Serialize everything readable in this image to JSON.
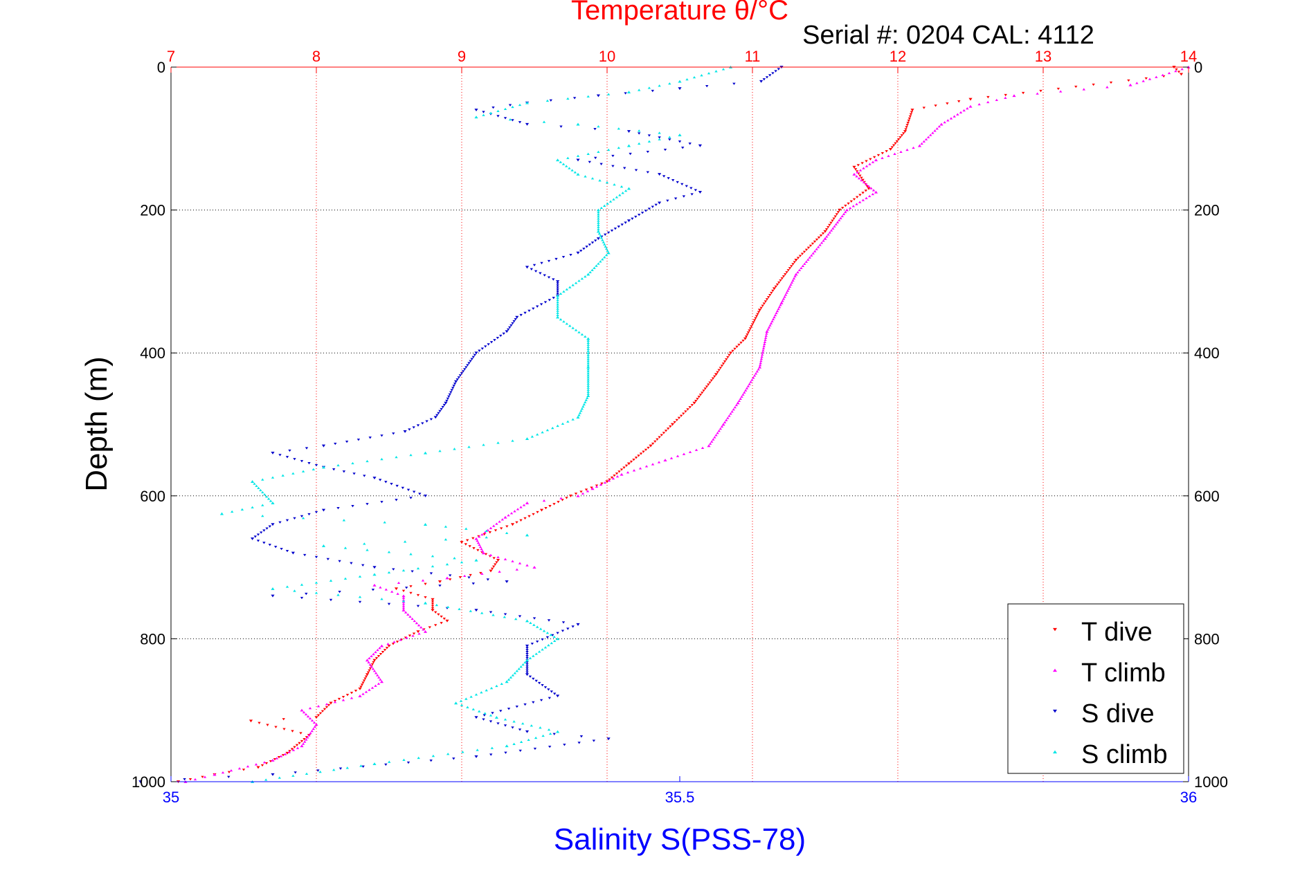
{
  "chart_data": {
    "type": "scatter",
    "title": "Temperature θ/°C",
    "subtitle": "Serial #: 0204  CAL: 4112",
    "xlabel": "Salinity S(PSS-78)",
    "ylabel": "Depth (m)",
    "x_bottom": {
      "label": "Salinity S(PSS-78)",
      "range": [
        35,
        36
      ],
      "ticks": [
        "35",
        "35.5",
        "36"
      ],
      "color": "#0000ff"
    },
    "x_top": {
      "label": "Temperature θ/°C",
      "range": [
        7,
        14
      ],
      "ticks": [
        "7",
        "8",
        "9",
        "10",
        "11",
        "12",
        "13",
        "14"
      ],
      "color": "#ff0000"
    },
    "y": {
      "range": [
        0,
        1000
      ],
      "reversed": true,
      "ticks": [
        "0",
        "200",
        "400",
        "600",
        "800",
        "1000"
      ]
    },
    "grid": true,
    "legend": {
      "position": "bottom-right",
      "entries": [
        "T dive",
        "T climb",
        "S dive",
        "S climb"
      ]
    },
    "series": [
      {
        "name": "T dive",
        "axis": "top",
        "color": "#ff0000",
        "marker": "triangle-down",
        "points": [
          [
            13.9,
            0
          ],
          [
            13.95,
            10
          ],
          [
            12.5,
            45
          ],
          [
            12.1,
            60
          ],
          [
            12.05,
            90
          ],
          [
            11.95,
            115
          ],
          [
            11.7,
            140
          ],
          [
            11.8,
            170
          ],
          [
            11.6,
            200
          ],
          [
            11.5,
            230
          ],
          [
            11.3,
            270
          ],
          [
            11.15,
            310
          ],
          [
            11.05,
            340
          ],
          [
            10.95,
            380
          ],
          [
            10.85,
            400
          ],
          [
            10.75,
            430
          ],
          [
            10.6,
            470
          ],
          [
            10.45,
            500
          ],
          [
            10.3,
            530
          ],
          [
            10.15,
            555
          ],
          [
            10.0,
            580
          ],
          [
            9.75,
            600
          ],
          [
            9.55,
            620
          ],
          [
            9.35,
            640
          ],
          [
            9.0,
            665
          ],
          [
            9.25,
            690
          ],
          [
            9.2,
            705
          ],
          [
            8.85,
            720
          ],
          [
            8.55,
            730
          ],
          [
            8.8,
            745
          ],
          [
            8.8,
            760
          ],
          [
            8.9,
            775
          ],
          [
            8.7,
            790
          ],
          [
            8.5,
            810
          ],
          [
            8.4,
            830
          ],
          [
            8.35,
            850
          ],
          [
            8.3,
            870
          ],
          [
            8.1,
            890
          ],
          [
            8.0,
            910
          ],
          [
            7.55,
            915
          ],
          [
            7.95,
            935
          ],
          [
            7.8,
            960
          ],
          [
            7.6,
            980
          ],
          [
            7.3,
            990
          ],
          [
            7.05,
            1000
          ]
        ]
      },
      {
        "name": "T climb",
        "axis": "top",
        "color": "#ff00ff",
        "marker": "triangle-up",
        "points": [
          [
            14.0,
            0
          ],
          [
            13.6,
            25
          ],
          [
            12.8,
            40
          ],
          [
            12.5,
            55
          ],
          [
            12.3,
            80
          ],
          [
            12.15,
            110
          ],
          [
            11.85,
            130
          ],
          [
            11.7,
            150
          ],
          [
            11.85,
            175
          ],
          [
            11.65,
            200
          ],
          [
            11.5,
            240
          ],
          [
            11.3,
            290
          ],
          [
            11.2,
            330
          ],
          [
            11.1,
            370
          ],
          [
            11.05,
            420
          ],
          [
            10.9,
            470
          ],
          [
            10.8,
            500
          ],
          [
            10.7,
            530
          ],
          [
            10.4,
            550
          ],
          [
            10.1,
            570
          ],
          [
            9.9,
            590
          ],
          [
            9.8,
            600
          ],
          [
            9.45,
            610
          ],
          [
            9.3,
            630
          ],
          [
            9.1,
            660
          ],
          [
            9.15,
            680
          ],
          [
            9.5,
            700
          ],
          [
            8.9,
            715
          ],
          [
            8.4,
            725
          ],
          [
            8.6,
            740
          ],
          [
            8.6,
            760
          ],
          [
            8.75,
            790
          ],
          [
            8.45,
            810
          ],
          [
            8.35,
            830
          ],
          [
            8.45,
            860
          ],
          [
            8.3,
            880
          ],
          [
            7.9,
            900
          ],
          [
            8.0,
            920
          ],
          [
            7.9,
            950
          ],
          [
            7.7,
            970
          ],
          [
            7.3,
            990
          ],
          [
            7.1,
            1000
          ]
        ]
      },
      {
        "name": "S dive",
        "axis": "bottom",
        "color": "#0000cc",
        "marker": "triangle-down",
        "points": [
          [
            35.6,
            0
          ],
          [
            35.58,
            20
          ],
          [
            35.5,
            30
          ],
          [
            35.42,
            40
          ],
          [
            35.35,
            50
          ],
          [
            35.3,
            60
          ],
          [
            35.35,
            80
          ],
          [
            35.45,
            90
          ],
          [
            35.52,
            110
          ],
          [
            35.4,
            130
          ],
          [
            35.48,
            150
          ],
          [
            35.52,
            175
          ],
          [
            35.48,
            190
          ],
          [
            35.45,
            215
          ],
          [
            35.42,
            240
          ],
          [
            35.4,
            260
          ],
          [
            35.35,
            280
          ],
          [
            35.38,
            300
          ],
          [
            35.38,
            320
          ],
          [
            35.34,
            350
          ],
          [
            35.33,
            370
          ],
          [
            35.3,
            400
          ],
          [
            35.28,
            440
          ],
          [
            35.27,
            470
          ],
          [
            35.26,
            490
          ],
          [
            35.23,
            510
          ],
          [
            35.15,
            530
          ],
          [
            35.1,
            540
          ],
          [
            35.15,
            560
          ],
          [
            35.2,
            575
          ],
          [
            35.25,
            600
          ],
          [
            35.15,
            620
          ],
          [
            35.1,
            640
          ],
          [
            35.08,
            660
          ],
          [
            35.12,
            680
          ],
          [
            35.2,
            700
          ],
          [
            35.33,
            720
          ],
          [
            35.1,
            740
          ],
          [
            35.3,
            760
          ],
          [
            35.4,
            780
          ],
          [
            35.35,
            810
          ],
          [
            35.35,
            850
          ],
          [
            35.38,
            880
          ],
          [
            35.3,
            910
          ],
          [
            35.35,
            930
          ],
          [
            35.43,
            940
          ],
          [
            35.3,
            965
          ],
          [
            35.1,
            990
          ],
          [
            34.97,
            1000
          ]
        ]
      },
      {
        "name": "S climb",
        "axis": "bottom",
        "color": "#00e6e6",
        "marker": "triangle-up",
        "points": [
          [
            35.55,
            0
          ],
          [
            35.5,
            20
          ],
          [
            35.45,
            35
          ],
          [
            35.35,
            50
          ],
          [
            35.3,
            70
          ],
          [
            35.4,
            80
          ],
          [
            35.5,
            95
          ],
          [
            35.45,
            110
          ],
          [
            35.38,
            130
          ],
          [
            35.4,
            150
          ],
          [
            35.45,
            170
          ],
          [
            35.42,
            200
          ],
          [
            35.42,
            230
          ],
          [
            35.43,
            260
          ],
          [
            35.41,
            290
          ],
          [
            35.38,
            320
          ],
          [
            35.38,
            350
          ],
          [
            35.41,
            380
          ],
          [
            35.41,
            420
          ],
          [
            35.41,
            460
          ],
          [
            35.4,
            490
          ],
          [
            35.35,
            520
          ],
          [
            35.25,
            540
          ],
          [
            35.15,
            560
          ],
          [
            35.08,
            580
          ],
          [
            35.1,
            610
          ],
          [
            35.05,
            625
          ],
          [
            35.25,
            640
          ],
          [
            35.35,
            655
          ],
          [
            35.15,
            670
          ],
          [
            35.3,
            690
          ],
          [
            35.2,
            710
          ],
          [
            35.1,
            730
          ],
          [
            35.25,
            750
          ],
          [
            35.35,
            775
          ],
          [
            35.38,
            800
          ],
          [
            35.35,
            830
          ],
          [
            35.33,
            860
          ],
          [
            35.28,
            890
          ],
          [
            35.32,
            910
          ],
          [
            35.38,
            930
          ],
          [
            35.33,
            950
          ],
          [
            35.2,
            975
          ],
          [
            35.08,
            1000
          ]
        ]
      }
    ]
  }
}
